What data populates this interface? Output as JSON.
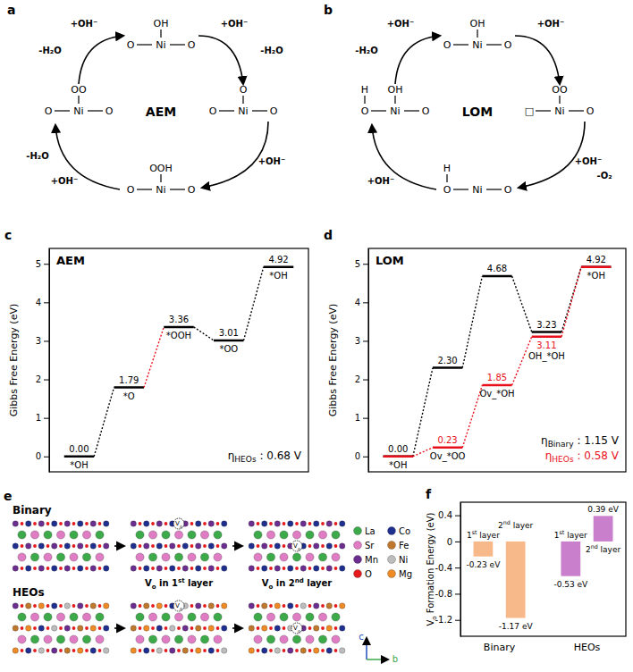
{
  "chart_data": [
    {
      "type": "energy_profile",
      "panel": "c",
      "title": "AEM",
      "y_label": "Gibbs Free Energy (eV)",
      "categories": [
        "*OH",
        "*O",
        "*OOH",
        "*OO",
        "*OH"
      ],
      "series": [
        {
          "color": "#000000",
          "colors": [
            "#000000",
            "#e8101a",
            "#000000",
            "#000000"
          ],
          "values": [
            0,
            1.79,
            3.36,
            3.01,
            4.92
          ],
          "value_labels": [
            "0.00",
            "1.79",
            "3.36",
            "3.01",
            "4.92"
          ]
        }
      ],
      "ylim": [
        -0.4,
        5.4
      ],
      "yticks": [
        0,
        1,
        2,
        3,
        4,
        5
      ],
      "tick_labels": "y",
      "data_labels": true,
      "annotations": [
        {
          "text": "η",
          "subscript": "HEOs",
          "value_text": " : 0.68 V",
          "color": "#000000"
        }
      ]
    },
    {
      "type": "energy_profile",
      "panel": "d",
      "title": "LOM",
      "y_label": "Gibbs Free Energy (eV)",
      "categories": [
        "*OH",
        "Ov_*OO",
        "Ov_*OH",
        "OH_*OH",
        "*OH"
      ],
      "series": [
        {
          "color": "#000000",
          "values": [
            0,
            2.3,
            4.68,
            3.23,
            4.92
          ],
          "value_labels": [
            "0.00",
            "2.30",
            "4.68",
            "3.23",
            "4.92"
          ]
        },
        {
          "color": "#e8101a",
          "values": [
            0,
            0.23,
            1.85,
            3.11,
            4.92
          ],
          "value_labels": [
            null,
            "0.23",
            "1.85",
            "3.11",
            null
          ]
        }
      ],
      "ylim": [
        -0.4,
        5.4
      ],
      "yticks": [
        0,
        1,
        2,
        3,
        4,
        5
      ],
      "tick_labels": "y",
      "data_labels": true,
      "annotations": [
        {
          "text": "η",
          "subscript": "Binary",
          "value_text": " : 1.15 V",
          "color": "#000000"
        },
        {
          "text": "η",
          "subscript": "HEOs",
          "value_text": " : 0.58 V",
          "color": "#e8101a"
        }
      ]
    },
    {
      "type": "bar",
      "panel": "f",
      "y_label": "Vo Formation Energy (eV)",
      "categories": [
        "1st layer",
        "2nd layer",
        "1st layer",
        "2nd layer"
      ],
      "series": [
        {
          "name": "Binary",
          "color": "#f8b98a",
          "values": [
            -0.23,
            -1.17,
            null,
            null
          ],
          "value_labels": [
            "-0.23 eV",
            "-1.17 eV",
            null,
            null
          ]
        },
        {
          "name": "HEOs",
          "color": "#c97fcc",
          "values": [
            null,
            null,
            -0.53,
            0.39
          ],
          "value_labels": [
            null,
            null,
            "-0.53 eV",
            "0.39 eV"
          ]
        }
      ],
      "ylim": [
        -1.45,
        0.6
      ],
      "yticks": [
        -1.2,
        -0.8,
        -0.4,
        0,
        0.4
      ],
      "tick_labels": "y",
      "data_labels": true
    }
  ],
  "diagrams": {
    "aem": {
      "panel": "a",
      "center_label": "AEM",
      "nodes": [
        {
          "adsorbate": "OH",
          "left": "O",
          "metal": "Ni",
          "right": "O"
        },
        {
          "adsorbate": "O",
          "left": "O",
          "metal": "Ni",
          "right": "O"
        },
        {
          "adsorbate": "OOH",
          "left": "O",
          "metal": "Ni",
          "right": "O"
        },
        {
          "adsorbate": "OO",
          "left": "O",
          "metal": "Ni",
          "right": "O"
        }
      ],
      "steps": [
        {
          "labels": [
            "+OH⁻",
            "-H₂O"
          ]
        },
        {
          "labels": [
            "+OH⁻"
          ]
        },
        {
          "labels": [
            "+OH⁻",
            "-H₂O"
          ]
        },
        {
          "labels": [
            "+OH⁻",
            "-H₂O"
          ]
        }
      ]
    },
    "lom": {
      "panel": "b",
      "center_label": "LOM",
      "nodes": [
        {
          "adsorbate": "OH",
          "left": "O",
          "metal": "Ni",
          "right": "O"
        },
        {
          "adsorbate": "OO",
          "left": "□",
          "metal": "Ni",
          "right": "O"
        },
        {
          "left_h": "H",
          "left": "O",
          "metal": "Ni",
          "right": "O"
        },
        {
          "adsorbate": "OH",
          "left_h": "H",
          "left": "O",
          "metal": "Ni",
          "right": "O"
        }
      ],
      "steps": [
        {
          "labels": [
            "+OH⁻"
          ]
        },
        {
          "labels": [
            "+OH⁻",
            "-O₂"
          ]
        },
        {
          "labels": [
            "+OH⁻"
          ]
        },
        {
          "labels": [
            "+OH⁻",
            "-H₂O"
          ]
        }
      ]
    },
    "structures": {
      "panel": "e",
      "rows": [
        "Binary",
        "HEOs"
      ],
      "captions": [
        "Vo in 1st layer",
        "Vo in 2nd layer"
      ],
      "vacancy_label": "Vo",
      "legend": [
        {
          "name": "La",
          "color": "#3daa4a"
        },
        {
          "name": "Sr",
          "color": "#e07cc4"
        },
        {
          "name": "Mn",
          "color": "#6b2d8f"
        },
        {
          "name": "O",
          "color": "#e41a1c"
        },
        {
          "name": "Co",
          "color": "#1f2f8f"
        },
        {
          "name": "Fe",
          "color": "#c0782c"
        },
        {
          "name": "Ni",
          "color": "#bdbdbd"
        },
        {
          "name": "Mg",
          "color": "#f08a24"
        }
      ],
      "axes": [
        "c",
        "b"
      ]
    }
  }
}
